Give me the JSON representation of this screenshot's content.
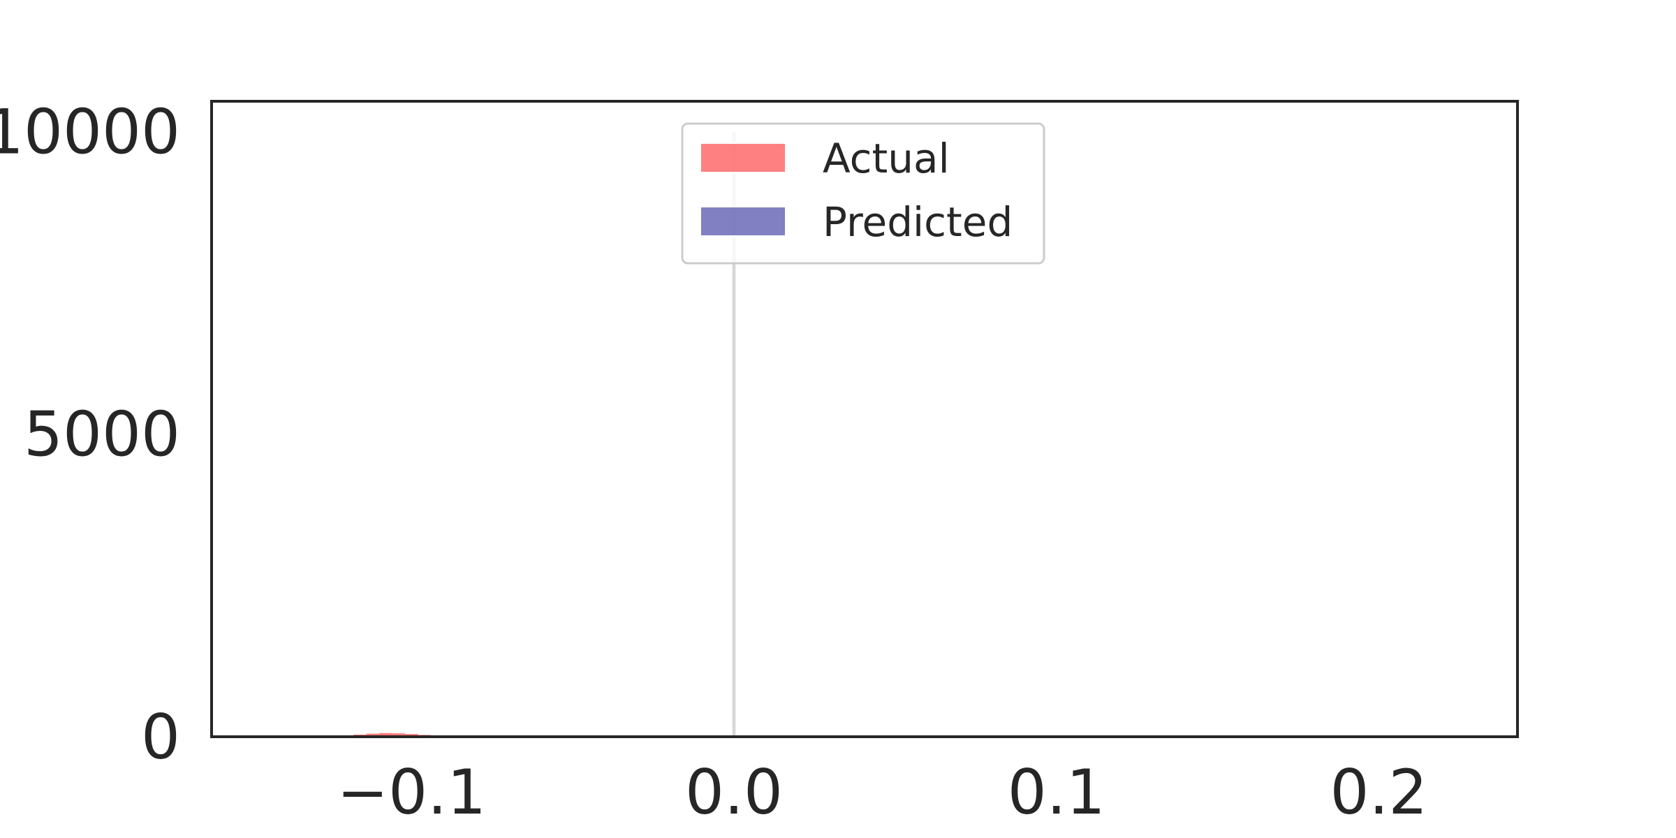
{
  "chart_data": {
    "type": "bar",
    "title": "",
    "xlabel": "",
    "ylabel": "",
    "xlim": [
      -0.162,
      0.243
    ],
    "ylim": [
      0,
      10500
    ],
    "x_ticks": [
      {
        "value": -0.1,
        "label": "−0.1"
      },
      {
        "value": 0.0,
        "label": "0.0"
      },
      {
        "value": 0.1,
        "label": "0.1"
      },
      {
        "value": 0.2,
        "label": "0.2"
      }
    ],
    "y_ticks": [
      {
        "value": 0,
        "label": "0"
      },
      {
        "value": 5000,
        "label": "5000"
      },
      {
        "value": 10000,
        "label": "10000"
      }
    ],
    "legend": {
      "position": "upper-center"
    },
    "series": [
      {
        "name": "Actual",
        "color": "#ff4a4a",
        "bins": [
          {
            "x0": -0.122,
            "x1": -0.118,
            "count": 20
          },
          {
            "x0": -0.118,
            "x1": -0.114,
            "count": 35
          },
          {
            "x0": -0.114,
            "x1": -0.11,
            "count": 50
          },
          {
            "x0": -0.11,
            "x1": -0.106,
            "count": 60
          },
          {
            "x0": -0.106,
            "x1": -0.102,
            "count": 55
          },
          {
            "x0": -0.102,
            "x1": -0.098,
            "count": 45
          },
          {
            "x0": -0.098,
            "x1": -0.094,
            "count": 30
          },
          {
            "x0": -0.094,
            "x1": -0.09,
            "count": 15
          }
        ]
      },
      {
        "name": "Predicted",
        "color": "#4a4aaa",
        "bins": [
          {
            "x0": -0.0005,
            "x1": 0.0005,
            "count": 10000
          }
        ]
      }
    ]
  }
}
